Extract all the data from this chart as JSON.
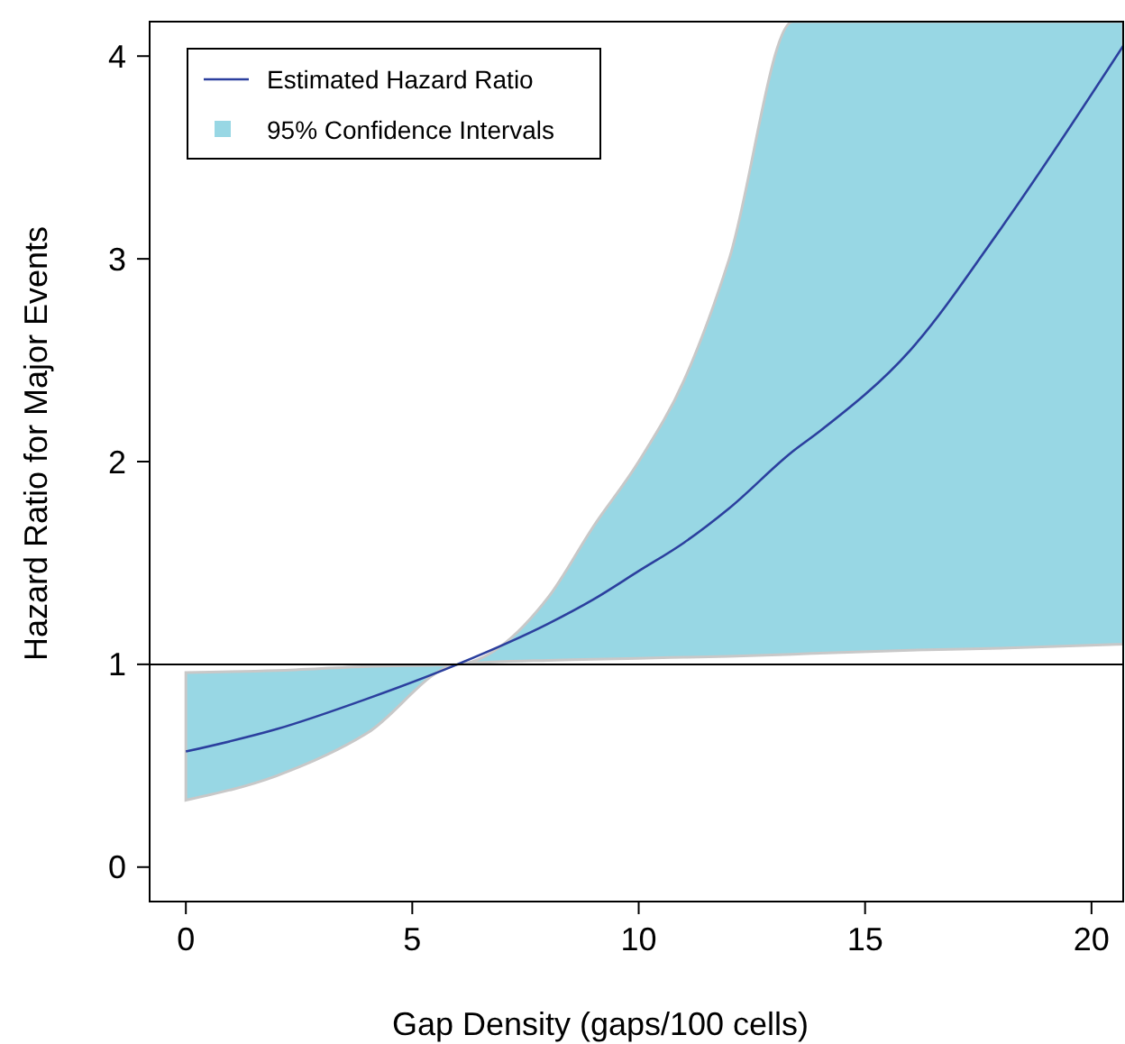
{
  "chart_data": {
    "type": "line",
    "xlabel": "Gap Density (gaps/100 cells)",
    "ylabel": "Hazard Ratio for Major Events",
    "x": [
      0,
      2,
      4,
      6,
      8,
      9,
      10,
      11,
      12,
      13.4,
      14,
      16,
      18,
      20.7
    ],
    "series": [
      {
        "name": "Estimated Hazard Ratio",
        "color": "#2b3f9e",
        "values": [
          0.57,
          0.68,
          0.83,
          1.0,
          1.2,
          1.32,
          1.46,
          1.6,
          1.77,
          2.05,
          2.15,
          2.55,
          3.15,
          4.05
        ],
        "lower": [
          0.33,
          0.45,
          0.66,
          1.0,
          1.02,
          1.025,
          1.03,
          1.035,
          1.04,
          1.05,
          1.055,
          1.07,
          1.08,
          1.1
        ],
        "upper": [
          0.96,
          0.97,
          0.99,
          1.0,
          1.33,
          1.68,
          2.0,
          2.4,
          3.0,
          4.17,
          4.17,
          4.17,
          4.17,
          4.17
        ]
      }
    ],
    "annotations": [
      "95% Confidence Intervals"
    ],
    "xlim": [
      -0.8,
      20.7
    ],
    "ylim": [
      -0.17,
      4.17
    ],
    "xticks": [
      0,
      5,
      10,
      15,
      20
    ],
    "yticks": [
      0,
      1,
      2,
      3,
      4
    ],
    "ref_lines": [
      {
        "axis": "y",
        "value": 1,
        "color": "#000000"
      }
    ],
    "legend": "top left",
    "grid": false,
    "marker": "none",
    "line_style": "solid"
  }
}
